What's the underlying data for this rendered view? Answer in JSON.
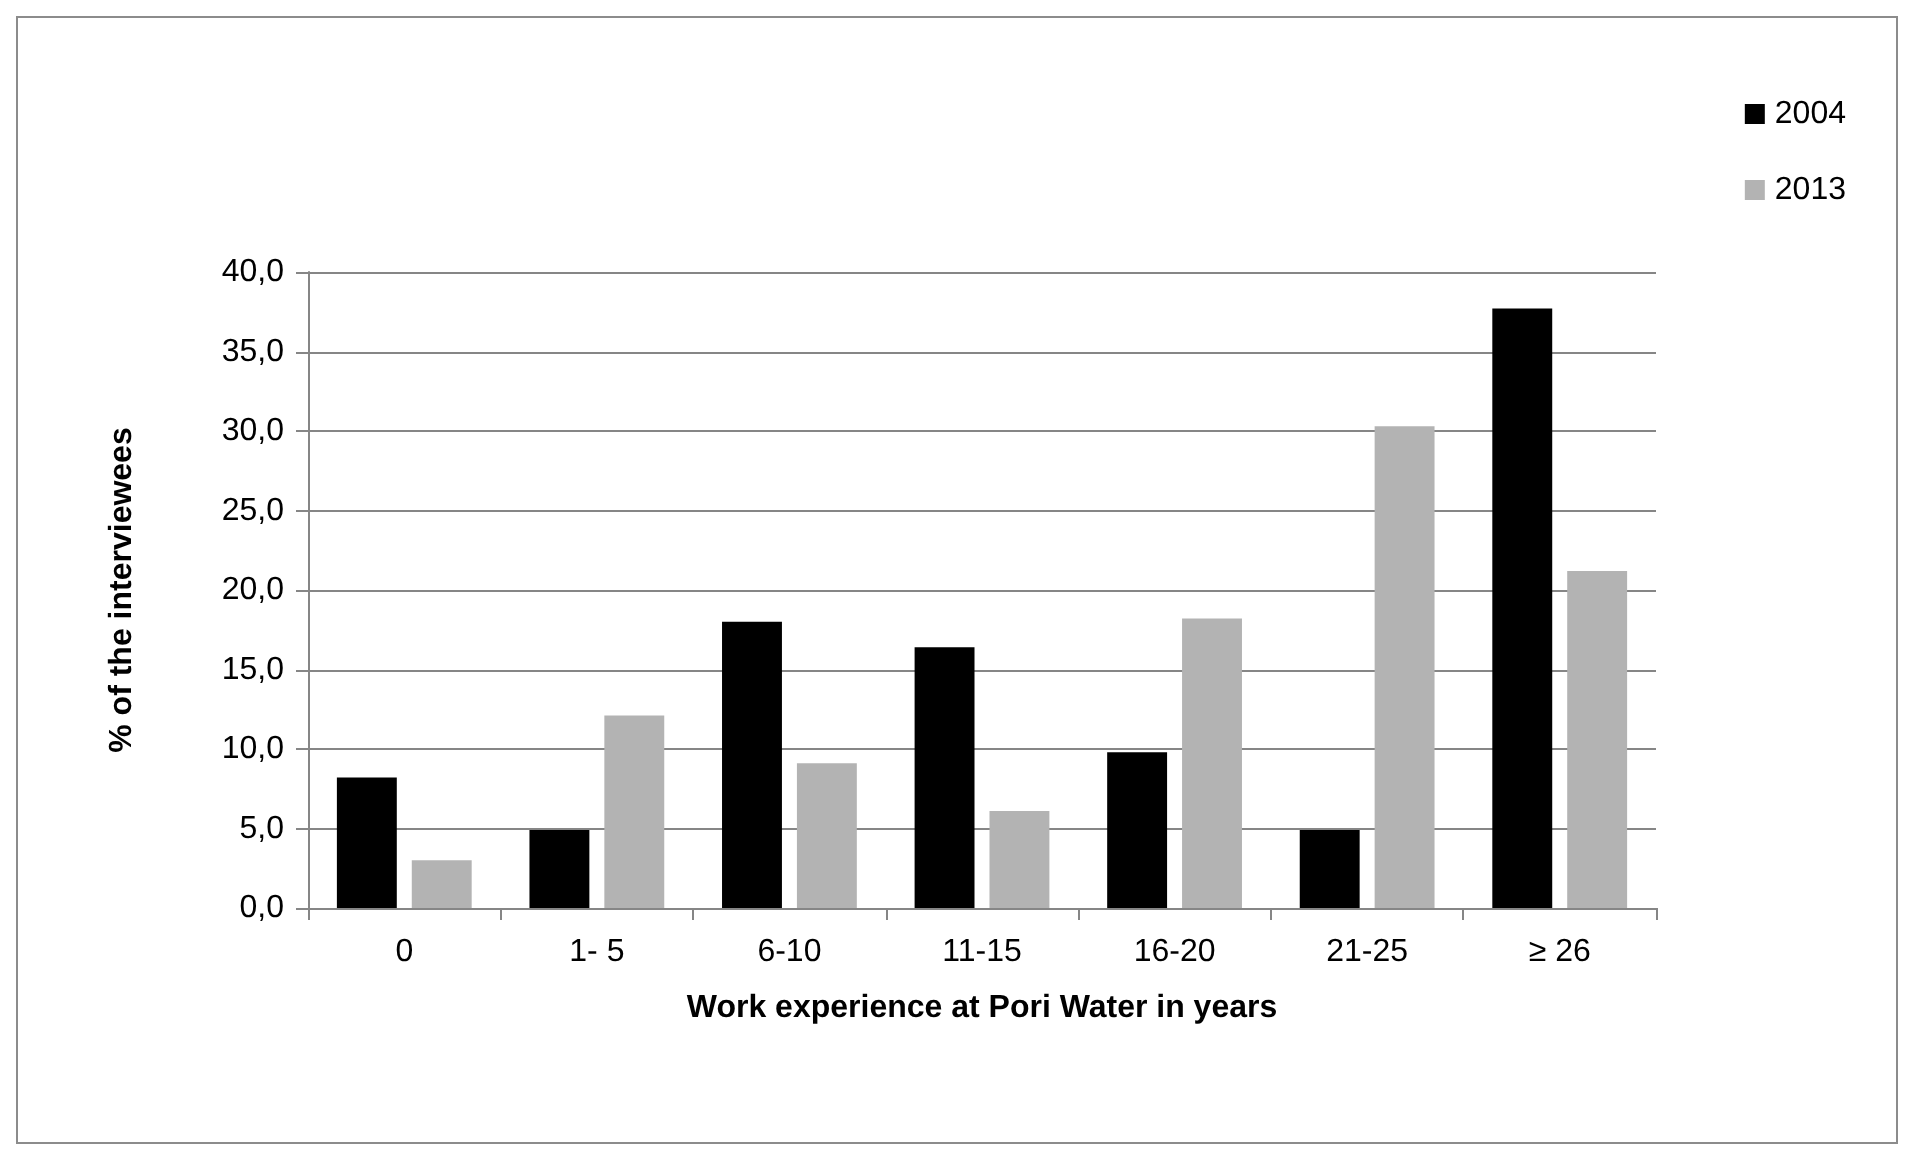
{
  "chart_data": {
    "type": "bar",
    "xlabel": "Work experience at Pori Water in years",
    "ylabel": "% of the interviewees",
    "categories": [
      "0",
      "1- 5",
      "6-10",
      "11-15",
      "16-20",
      "21-25",
      "≥ 26"
    ],
    "series": [
      {
        "name": "2004",
        "color": "#000000",
        "values": [
          8.2,
          4.9,
          18.0,
          16.4,
          9.8,
          4.9,
          37.7
        ]
      },
      {
        "name": "2013",
        "color": "#b3b3b3",
        "values": [
          3.0,
          12.1,
          9.1,
          6.1,
          18.2,
          30.3,
          21.2
        ]
      }
    ],
    "ylim": [
      0,
      40
    ],
    "yticks": [
      {
        "value": 0,
        "label": "0,0"
      },
      {
        "value": 5,
        "label": "5,0"
      },
      {
        "value": 10,
        "label": "10,0"
      },
      {
        "value": 15,
        "label": "15,0"
      },
      {
        "value": 20,
        "label": "20,0"
      },
      {
        "value": 25,
        "label": "25,0"
      },
      {
        "value": 30,
        "label": "30,0"
      },
      {
        "value": 35,
        "label": "35,0"
      },
      {
        "value": 40,
        "label": "40,0"
      }
    ],
    "grid": "y",
    "legend": "top right"
  }
}
